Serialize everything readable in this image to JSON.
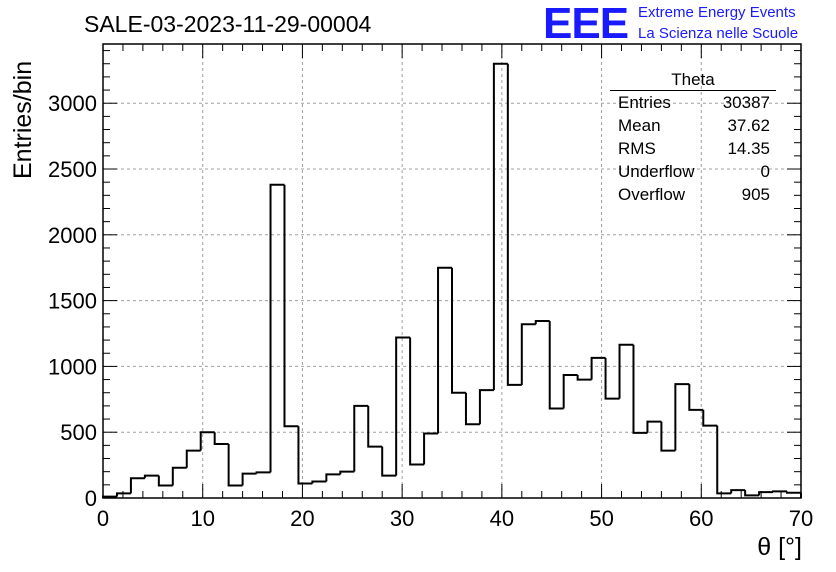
{
  "title": "SALE-03-2023-11-29-00004",
  "logo": {
    "mark": "EEE",
    "line1": "Extreme Energy Events",
    "line2": "La Scienza nelle Scuole",
    "color": "#1a1aff"
  },
  "stats_box": {
    "name": "Theta",
    "entries_label": "Entries",
    "entries_value": "30387",
    "mean_label": "Mean",
    "mean_value": "37.62",
    "rms_label": "RMS",
    "rms_value": "14.35",
    "underflow_label": "Underflow",
    "underflow_value": "0",
    "overflow_label": "Overflow",
    "overflow_value": "905"
  },
  "chart_data": {
    "type": "bar",
    "subtype": "histogram-step",
    "xlabel": "θ [°]",
    "ylabel": "Entries/bin",
    "xlim": [
      0,
      70
    ],
    "ylim": [
      0,
      3450
    ],
    "bin_width": 1.4,
    "values": [
      10,
      35,
      150,
      170,
      95,
      230,
      360,
      500,
      410,
      95,
      185,
      195,
      2380,
      545,
      110,
      125,
      180,
      200,
      700,
      390,
      170,
      1220,
      255,
      490,
      1750,
      800,
      560,
      820,
      3300,
      860,
      1320,
      1345,
      680,
      935,
      900,
      1065,
      755,
      1165,
      495,
      580,
      360,
      865,
      670,
      550,
      35,
      60,
      20,
      45,
      50,
      40
    ],
    "xticks": [
      0,
      10,
      20,
      30,
      40,
      50,
      60,
      70
    ],
    "yticks": [
      0,
      500,
      1000,
      1500,
      2000,
      2500,
      3000
    ],
    "grid": true,
    "line_color": "#000000",
    "grid_color": "#a0a0a0"
  }
}
